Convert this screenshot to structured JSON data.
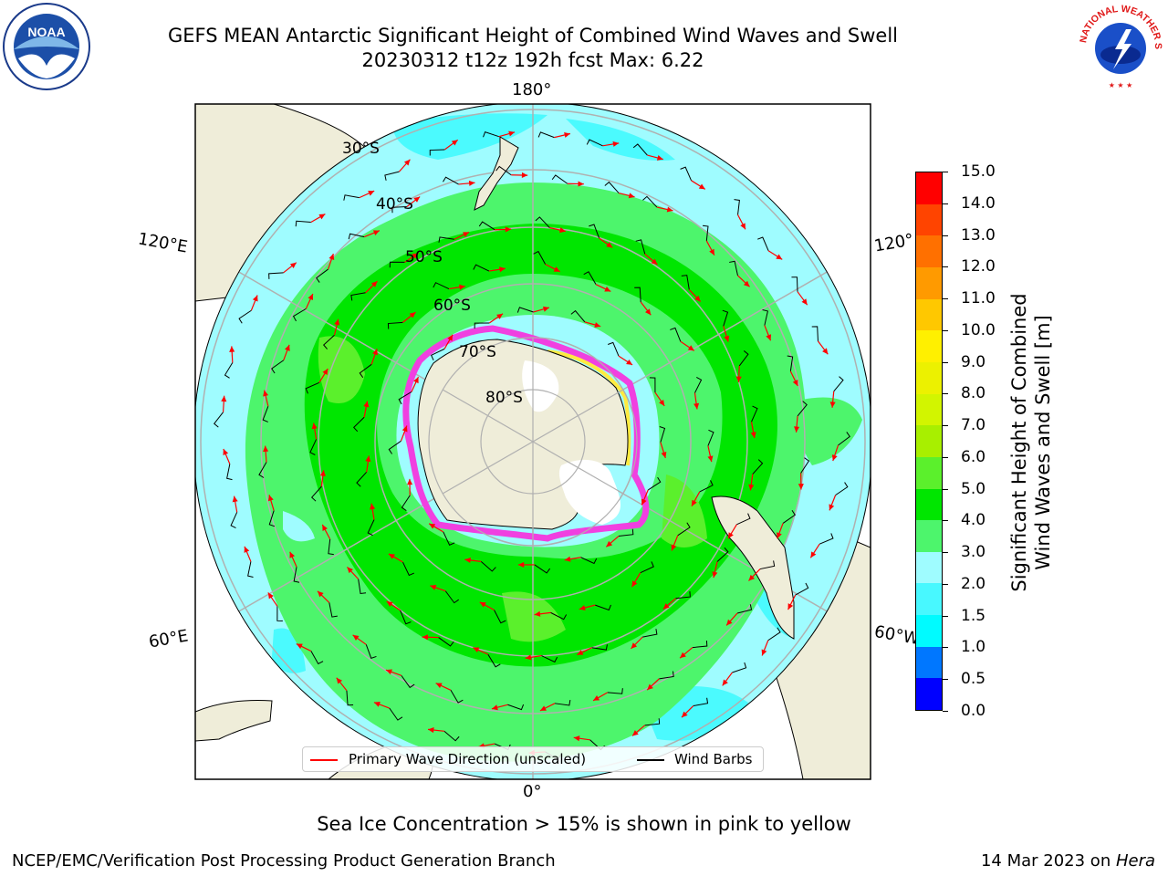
{
  "header": {
    "title_line1": "GEFS MEAN Antarctic Significant Height of Combined Wind Waves and Swell",
    "title_line2": "20230312 t12z 192h fcst   Max: 6.22"
  },
  "logos": {
    "noaa_text": "NOAA",
    "nws_text": "NATIONAL WEATHER SERVICE"
  },
  "map": {
    "longitude_labels": {
      "top": "180°",
      "bottom": "0°",
      "left_upper": "120°E",
      "left_lower": "60°E",
      "right_upper": "120°",
      "right_lower": "60°W"
    },
    "latitude_labels": [
      "30°S",
      "40°S",
      "50°S",
      "60°S",
      "70°S",
      "80°S"
    ],
    "colors": {
      "ocean_light": "#9ffcff",
      "ocean_cyan": "#4bfafe",
      "land": "#efedd9",
      "green_light": "#4df56c",
      "green": "#00e600",
      "green_yellow": "#5bf02c",
      "ice_pink": "#f040e0",
      "ice_yellow": "#ffea40",
      "arrow": "#ff0000",
      "barb": "#000000",
      "grid": "#b0b0b0"
    }
  },
  "colorbar": {
    "label_line1": "Significant Height of Combined",
    "label_line2": "Wind Waves and Swell [m]",
    "ticks": [
      "0.0",
      "0.5",
      "1.0",
      "1.5",
      "2.0",
      "3.0",
      "4.0",
      "5.0",
      "6.0",
      "7.0",
      "8.0",
      "9.0",
      "10.0",
      "11.0",
      "12.0",
      "13.0",
      "14.0",
      "15.0"
    ],
    "colors": [
      "#0000ff",
      "#0077ff",
      "#00fbff",
      "#48f8ff",
      "#9ffcff",
      "#4df56c",
      "#00e600",
      "#5bf02c",
      "#a8ef00",
      "#d2f500",
      "#ecf100",
      "#fff000",
      "#ffc800",
      "#ff9a00",
      "#ff7000",
      "#ff4400",
      "#ff0000"
    ]
  },
  "legend": {
    "item1": "Primary Wave Direction (unscaled)",
    "item2": "Wind Barbs"
  },
  "footer": {
    "sea_ice_note": "Sea Ice Concentration > 15% is shown in pink to yellow",
    "left": "NCEP/EMC/Verification Post Processing Product Generation Branch",
    "right_prefix": "14 Mar 2023 on ",
    "right_machine": "Hera"
  }
}
